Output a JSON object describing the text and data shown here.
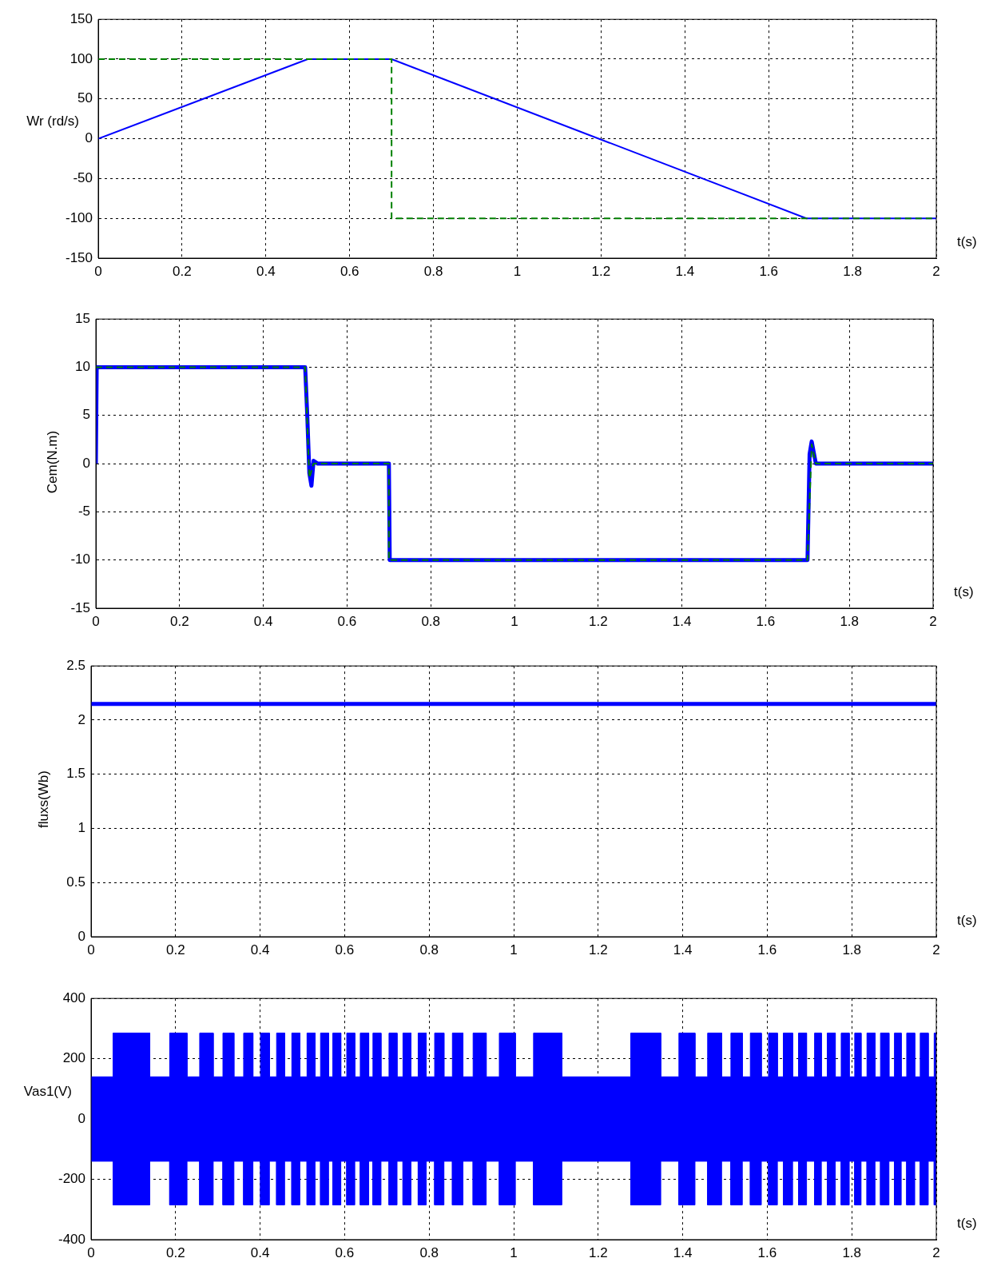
{
  "chart_data": [
    {
      "type": "line",
      "xlabel": "t(s)",
      "ylabel": "Wr (rd/s)",
      "xlim": [
        0,
        2
      ],
      "xticks": [
        0,
        0.2,
        0.4,
        0.6,
        0.8,
        1,
        1.2,
        1.4,
        1.6,
        1.8,
        2
      ],
      "ylim": [
        -150,
        150
      ],
      "yticks": [
        -150,
        -100,
        -50,
        0,
        50,
        100,
        150
      ],
      "grid": true,
      "series": [
        {
          "color": "#0000ff",
          "x": [
            0,
            0.5,
            0.7,
            1.69,
            2
          ],
          "values": [
            0,
            100,
            100,
            -100,
            -100
          ]
        },
        {
          "color": "#008000",
          "line_style": "dashed",
          "x": [
            0,
            0.7,
            0.7,
            2
          ],
          "values": [
            100,
            100,
            -100,
            -100
          ]
        }
      ]
    },
    {
      "type": "line",
      "xlabel": "t(s)",
      "ylabel": "Cem(N.m)",
      "xlim": [
        0,
        2
      ],
      "xticks": [
        0,
        0.2,
        0.4,
        0.6,
        0.8,
        1,
        1.2,
        1.4,
        1.6,
        1.8,
        2
      ],
      "ylim": [
        -15,
        15
      ],
      "yticks": [
        -15,
        -10,
        -5,
        0,
        5,
        10,
        15
      ],
      "grid": true,
      "series": [
        {
          "color": "#0000ff",
          "x": [
            0,
            0.002,
            0.5,
            0.505,
            0.51,
            0.515,
            0.52,
            0.53,
            0.7,
            0.702,
            1.7,
            1.705,
            1.71,
            1.72,
            2
          ],
          "values": [
            0,
            10,
            10,
            5,
            -1,
            -2.3,
            0.3,
            0,
            0,
            -10,
            -10,
            1,
            2.3,
            0,
            0
          ]
        },
        {
          "color": "#008000",
          "line_style": "dashed",
          "x": [
            0,
            0.5,
            0.51,
            0.52,
            0.7,
            0.7,
            1.7,
            1.71,
            1.72,
            2
          ],
          "values": [
            10,
            10,
            -1.5,
            0,
            0,
            -10,
            -10,
            2,
            0,
            0
          ]
        }
      ]
    },
    {
      "type": "line",
      "xlabel": "t(s)",
      "ylabel": "fluxs(Wb)",
      "xlim": [
        0,
        2
      ],
      "xticks": [
        0,
        0.2,
        0.4,
        0.6,
        0.8,
        1,
        1.2,
        1.4,
        1.6,
        1.8,
        2
      ],
      "ylim": [
        0,
        2.5
      ],
      "yticks": [
        0,
        0.5,
        1,
        1.5,
        2,
        2.5
      ],
      "grid": true,
      "series": [
        {
          "color": "#0000ff",
          "x": [
            0,
            2
          ],
          "values": [
            2.15,
            2.15
          ]
        }
      ]
    },
    {
      "type": "area",
      "xlabel": "t(s)",
      "ylabel": "Vas1(V)",
      "xlim": [
        0,
        2
      ],
      "xticks": [
        0,
        0.2,
        0.4,
        0.6,
        0.8,
        1,
        1.2,
        1.4,
        1.6,
        1.8,
        2
      ],
      "ylim": [
        -400,
        400
      ],
      "yticks": [
        -400,
        -200,
        0,
        200,
        400
      ],
      "grid": true,
      "x": [
        0,
        0.052,
        0.052,
        0.139,
        0.139,
        0.186,
        0.186,
        0.227,
        0.227,
        0.257,
        0.257,
        0.289,
        0.289,
        0.312,
        0.312,
        0.338,
        0.338,
        0.361,
        0.361,
        0.383,
        0.383,
        0.401,
        0.401,
        0.422,
        0.422,
        0.439,
        0.439,
        0.458,
        0.458,
        0.475,
        0.475,
        0.494,
        0.494,
        0.511,
        0.511,
        0.53,
        0.53,
        0.543,
        0.543,
        0.562,
        0.562,
        0.572,
        0.572,
        0.591,
        0.591,
        0.605,
        0.605,
        0.624,
        0.624,
        0.637,
        0.637,
        0.657,
        0.657,
        0.667,
        0.667,
        0.686,
        0.686,
        0.705,
        0.705,
        0.724,
        0.724,
        0.738,
        0.738,
        0.757,
        0.757,
        0.774,
        0.774,
        0.793,
        0.793,
        0.813,
        0.813,
        0.835,
        0.835,
        0.855,
        0.855,
        0.88,
        0.88,
        0.904,
        0.904,
        0.935,
        0.935,
        0.966,
        0.966,
        1.004,
        1.004,
        1.047,
        1.047,
        1.114,
        1.114,
        1.277,
        1.277,
        1.348,
        1.348,
        1.391,
        1.391,
        1.429,
        1.429,
        1.459,
        1.459,
        1.492,
        1.492,
        1.514,
        1.514,
        1.541,
        1.541,
        1.56,
        1.56,
        1.586,
        1.586,
        1.603,
        1.603,
        1.624,
        1.624,
        1.638,
        1.638,
        1.66,
        1.66,
        1.674,
        1.674,
        1.693,
        1.693,
        1.712,
        1.712,
        1.728,
        1.728,
        1.742,
        1.742,
        1.761,
        1.761,
        1.775,
        1.775,
        1.794,
        1.794,
        1.807,
        1.807,
        1.822,
        1.822,
        1.836,
        1.836,
        1.855,
        1.855,
        1.868,
        1.868,
        1.888,
        1.888,
        1.901,
        1.901,
        1.917,
        1.917,
        1.93,
        1.93,
        1.949,
        1.949,
        1.962,
        1.962,
        1.981,
        1.981,
        1.995,
        1.995,
        2
      ],
      "series": [
        {
          "color": "#0000ff",
          "values": [
            140,
            140,
            285,
            285,
            140,
            140,
            285,
            285,
            140,
            140,
            285,
            285,
            140,
            140,
            285,
            285,
            140,
            140,
            285,
            285,
            140,
            140,
            285,
            285,
            140,
            140,
            285,
            285,
            140,
            140,
            285,
            285,
            140,
            140,
            285,
            285,
            140,
            140,
            285,
            285,
            140,
            140,
            285,
            285,
            140,
            140,
            285,
            285,
            140,
            140,
            285,
            285,
            140,
            140,
            285,
            285,
            140,
            140,
            285,
            285,
            140,
            140,
            285,
            285,
            140,
            140,
            285,
            285,
            140,
            140,
            285,
            285,
            140,
            140,
            285,
            285,
            140,
            140,
            285,
            285,
            140,
            140,
            285,
            285,
            140,
            140,
            285,
            285,
            140,
            140,
            285,
            285,
            140,
            140,
            285,
            285,
            140,
            140,
            285,
            285,
            140,
            140,
            285,
            285,
            140,
            140,
            285,
            285,
            140,
            140,
            285,
            285,
            140,
            140,
            285,
            285,
            140,
            140,
            285,
            285,
            140,
            140,
            285,
            285,
            140,
            140,
            285,
            285,
            140,
            140,
            285,
            285,
            140,
            140,
            285,
            285,
            140,
            140,
            285,
            285,
            140,
            140,
            285,
            285,
            140,
            140,
            285,
            285,
            140,
            140,
            285,
            285,
            140,
            140,
            285,
            285,
            140,
            140,
            285,
            285
          ]
        },
        {
          "color": "#0000ff",
          "values": [
            -140,
            -140,
            -285,
            -285,
            -140,
            -140,
            -285,
            -285,
            -140,
            -140,
            -285,
            -285,
            -140,
            -140,
            -285,
            -285,
            -140,
            -140,
            -285,
            -285,
            -140,
            -140,
            -285,
            -285,
            -140,
            -140,
            -285,
            -285,
            -140,
            -140,
            -285,
            -285,
            -140,
            -140,
            -285,
            -285,
            -140,
            -140,
            -285,
            -285,
            -140,
            -140,
            -285,
            -285,
            -140,
            -140,
            -285,
            -285,
            -140,
            -140,
            -285,
            -285,
            -140,
            -140,
            -285,
            -285,
            -140,
            -140,
            -285,
            -285,
            -140,
            -140,
            -285,
            -285,
            -140,
            -140,
            -285,
            -285,
            -140,
            -140,
            -285,
            -285,
            -140,
            -140,
            -285,
            -285,
            -140,
            -140,
            -285,
            -285,
            -140,
            -140,
            -285,
            -285,
            -140,
            -140,
            -285,
            -285,
            -140,
            -140,
            -285,
            -285,
            -140,
            -140,
            -285,
            -285,
            -140,
            -140,
            -285,
            -285,
            -140,
            -140,
            -285,
            -285,
            -140,
            -140,
            -285,
            -285,
            -140,
            -140,
            -285,
            -285,
            -140,
            -140,
            -285,
            -285,
            -140,
            -140,
            -285,
            -285,
            -140,
            -140,
            -285,
            -285,
            -140,
            -140,
            -285,
            -285,
            -140,
            -140,
            -285,
            -285,
            -140,
            -140,
            -285,
            -285,
            -140,
            -140,
            -285,
            -285,
            -140,
            -140,
            -285,
            -285,
            -140,
            -140,
            -285,
            -285,
            -140,
            -140,
            -285,
            -285,
            -140,
            -140,
            -285,
            -285,
            -140,
            -140,
            -285,
            -285
          ]
        }
      ]
    }
  ]
}
